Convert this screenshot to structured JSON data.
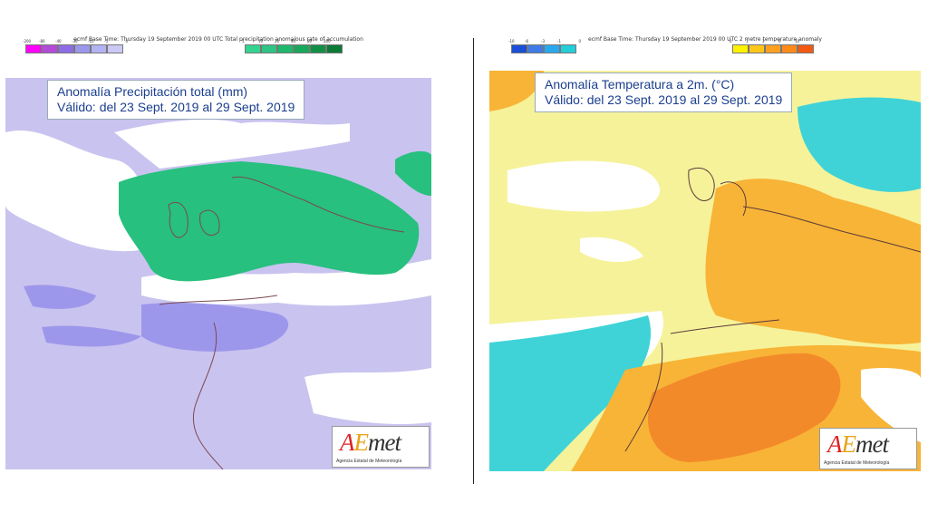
{
  "left_map": {
    "header": "ecmf Base Time: Thursday 19 September 2019 00 UTC Total precipitation anomalous rate of accumulation",
    "colorbar_negative": {
      "colors": [
        "#ff00ff",
        "#b44bd8",
        "#8c6de6",
        "#9d97ec",
        "#b3b3f3",
        "#cbc8f4"
      ],
      "ticks": [
        "-200",
        "-80",
        "-40",
        "-30",
        "-10",
        "-5",
        "0"
      ]
    },
    "colorbar_positive": {
      "colors": [
        "#34d390",
        "#2fc384",
        "#1eb86b",
        "#18a85b",
        "#128f47",
        "#0b7a36"
      ],
      "ticks": [
        "5",
        "10",
        "20",
        "40",
        "80",
        "200"
      ]
    },
    "title_line1": "Anomalía Precipitación total (mm)",
    "title_line2": "Válido: del 23 Sept. 2019 al 29 Sept. 2019",
    "colors": {
      "background": "#c9c3ef",
      "positive": "#27c07e",
      "dry": "#9d97ec",
      "neutral": "#ffffff"
    }
  },
  "right_map": {
    "header": "ecmf Base Time: Thursday 19 September 2019 00 UTC 2 metre temperature anomaly",
    "colorbar_negative": {
      "colors": [
        "#1a4fd6",
        "#3f7be6",
        "#2aa8ee",
        "#25cdd7"
      ],
      "ticks": [
        "-10",
        "-6",
        "-3",
        "-1",
        "0"
      ]
    },
    "colorbar_positive": {
      "colors": [
        "#fff200",
        "#ffc61a",
        "#ffa020",
        "#ff8a1a",
        "#f25a12"
      ],
      "ticks": [
        "0",
        "1",
        "3",
        "6",
        "10"
      ]
    },
    "title_line1": "Anomalía Temperatura a 2m. (°C)",
    "title_line2": "Válido: del 23 Sept. 2019 al 29 Sept. 2019",
    "colors": {
      "yellow": "#f6f29a",
      "orange": "#f8b436",
      "deep_orange": "#f38a2a",
      "cyan": "#3fd3d8"
    }
  },
  "logo": {
    "text_a": "A",
    "text_e": "E",
    "text_rest": "met",
    "subtitle": "Agencia Estatal de Meteorología"
  }
}
